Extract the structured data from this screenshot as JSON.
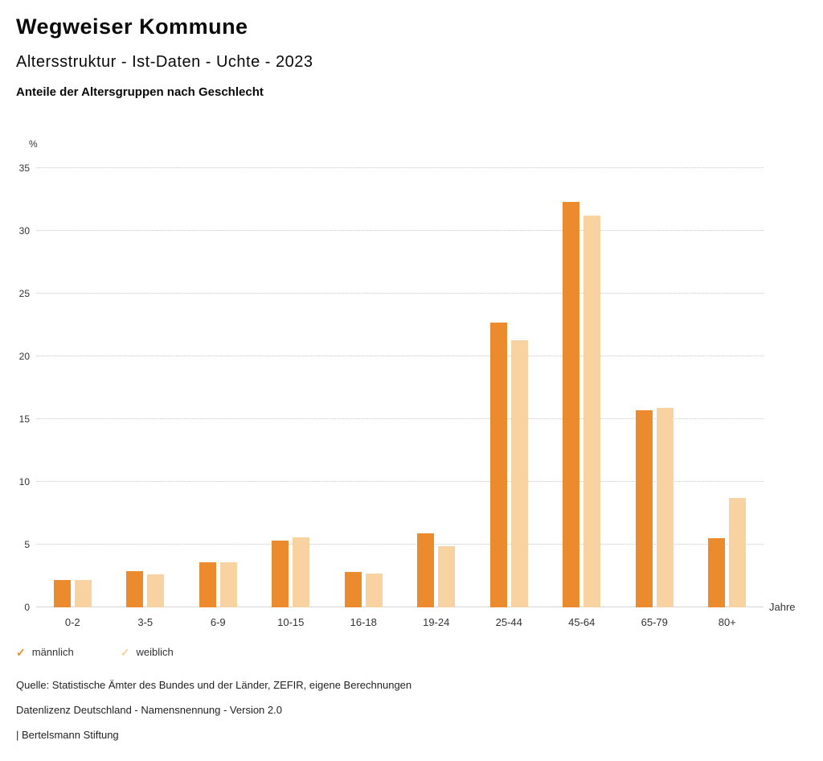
{
  "header": {
    "title": "Wegweiser Kommune",
    "subtitle": "Altersstruktur - Ist-Daten - Uchte - 2023",
    "chart_heading": "Anteile der Altersgruppen nach Geschlecht"
  },
  "chart_data": {
    "type": "bar",
    "title": "Anteile der Altersgruppen nach Geschlecht",
    "categories": [
      "0-2",
      "3-5",
      "6-9",
      "10-15",
      "16-18",
      "19-24",
      "25-44",
      "45-64",
      "65-79",
      "80+"
    ],
    "series": [
      {
        "name": "männlich",
        "color": "#EB8B2D",
        "values": [
          2.2,
          2.9,
          3.6,
          5.3,
          2.8,
          5.9,
          22.7,
          32.3,
          15.7,
          5.5
        ]
      },
      {
        "name": "weiblich",
        "color": "#F8D2A0",
        "values": [
          2.2,
          2.6,
          3.6,
          5.6,
          2.7,
          4.9,
          21.3,
          31.2,
          15.9,
          8.7
        ]
      }
    ],
    "ylabel": "%",
    "xlabel": "Jahre",
    "ylim": [
      0,
      35
    ],
    "ytick_step": 5,
    "grid": true,
    "legend_position": "bottom-left",
    "legend_check_glyph": "✓"
  },
  "footer": {
    "source": "Quelle: Statistische Ämter des Bundes und der Länder, ZEFIR, eigene Berechnungen",
    "license": "Datenlizenz Deutschland - Namensnennung - Version 2.0",
    "attribution": "| Bertelsmann Stiftung"
  }
}
